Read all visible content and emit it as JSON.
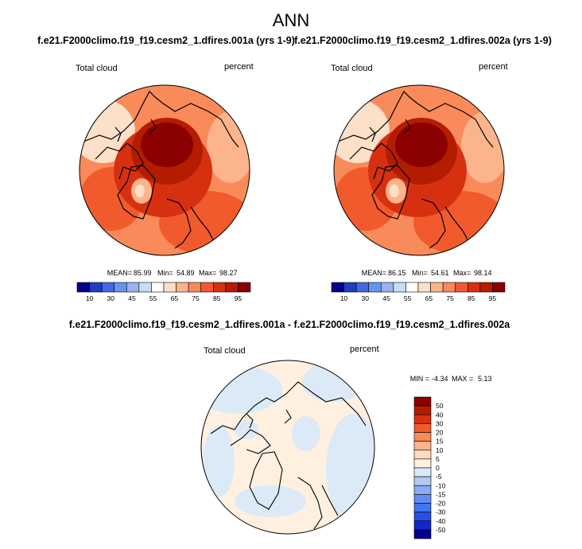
{
  "title": "ANN",
  "colors": {
    "seq": [
      "#00008b",
      "#1e3cc8",
      "#4169e1",
      "#6495ed",
      "#96b4f0",
      "#c8dcf8",
      "#ffffff",
      "#fde0c8",
      "#fcb48c",
      "#f98a5a",
      "#f05a2d",
      "#d73010",
      "#b41c00",
      "#8b0000"
    ],
    "div": [
      "#00008b",
      "#1428c8",
      "#2850e6",
      "#3c78f0",
      "#648cf0",
      "#8caaf0",
      "#b4c8f0",
      "#dceaf8",
      "#fff0e0",
      "#fddcc0",
      "#fcb48c",
      "#f98a5a",
      "#f05a2d",
      "#d73010",
      "#b41c00",
      "#8b0000"
    ],
    "coast": "#000000"
  },
  "chart_data": [
    {
      "type": "heatmap",
      "projection": "north-polar-stereographic",
      "case": "f.e21.F2000climo.f19_f19.cesm2_1.dfires.001a (yrs 1-9)",
      "variable": "Total cloud",
      "units": "percent",
      "stats": {
        "mean_label": "MEAN=",
        "mean": "85.99",
        "min_label": "Min=",
        "min": "54.89",
        "max_label": "Max=",
        "max": "98.27"
      },
      "colorbar_ticks": [
        "10",
        "30",
        "45",
        "55",
        "65",
        "75",
        "85",
        "95"
      ]
    },
    {
      "type": "heatmap",
      "projection": "north-polar-stereographic",
      "case": "f.e21.F2000climo.f19_f19.cesm2_1.dfires.002a (yrs 1-9)",
      "variable": "Total cloud",
      "units": "percent",
      "stats": {
        "mean_label": "MEAN=",
        "mean": "86.15",
        "min_label": "Min=",
        "min": "54.61",
        "max_label": "Max=",
        "max": "98.14"
      },
      "colorbar_ticks": [
        "10",
        "30",
        "45",
        "55",
        "65",
        "75",
        "85",
        "95"
      ]
    },
    {
      "type": "heatmap",
      "projection": "north-polar-stereographic",
      "case": "f.e21.F2000climo.f19_f19.cesm2_1.dfires.001a - f.e21.F2000climo.f19_f19.cesm2_1.dfires.002a",
      "variable": "Total cloud",
      "units": "percent",
      "stats": {
        "min_label": "MIN =",
        "min": "-4.34",
        "max_label": "MAX =",
        "max": "5.13"
      },
      "colorbar_ticks": [
        "50",
        "40",
        "30",
        "20",
        "15",
        "10",
        "5",
        "0",
        "-5",
        "-10",
        "-15",
        "-20",
        "-30",
        "-40",
        "-50"
      ]
    }
  ]
}
